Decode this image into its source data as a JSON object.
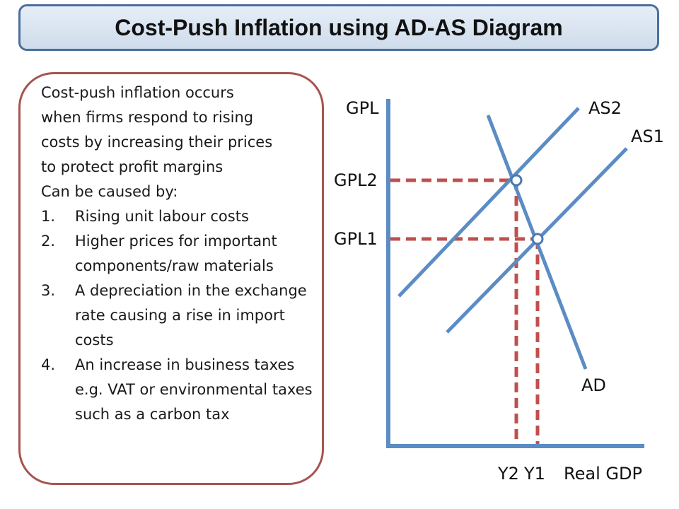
{
  "title": "Cost-Push Inflation using AD-AS Diagram",
  "explanation": {
    "intro_lines": [
      "Cost-push inflation occurs",
      "when firms respond to rising",
      "costs by increasing their prices",
      "to protect profit margins",
      "Can be caused by:"
    ],
    "causes": [
      {
        "num": "1.",
        "text": "Rising unit labour costs"
      },
      {
        "num": "2.",
        "text": "Higher prices for important components/raw materials"
      },
      {
        "num": "3.",
        "text": "A depreciation in the exchange rate causing a rise in import costs"
      },
      {
        "num": "4.",
        "text": "An increase in business taxes e.g. VAT or environmental taxes such as a carbon tax"
      }
    ]
  },
  "diagram": {
    "y_axis_label": "GPL",
    "x_axis_label": "Real GDP",
    "curves": {
      "as2": "AS2",
      "as1": "AS1",
      "ad": "AD"
    },
    "price_levels": {
      "gpl2": "GPL2",
      "gpl1": "GPL1"
    },
    "output_levels": {
      "y2": "Y2",
      "y1": "Y1"
    },
    "colors": {
      "curve": "#5b8cc4",
      "guide": "#c0504d",
      "title_border": "#4a6f9c",
      "box_border": "#a75450"
    }
  }
}
